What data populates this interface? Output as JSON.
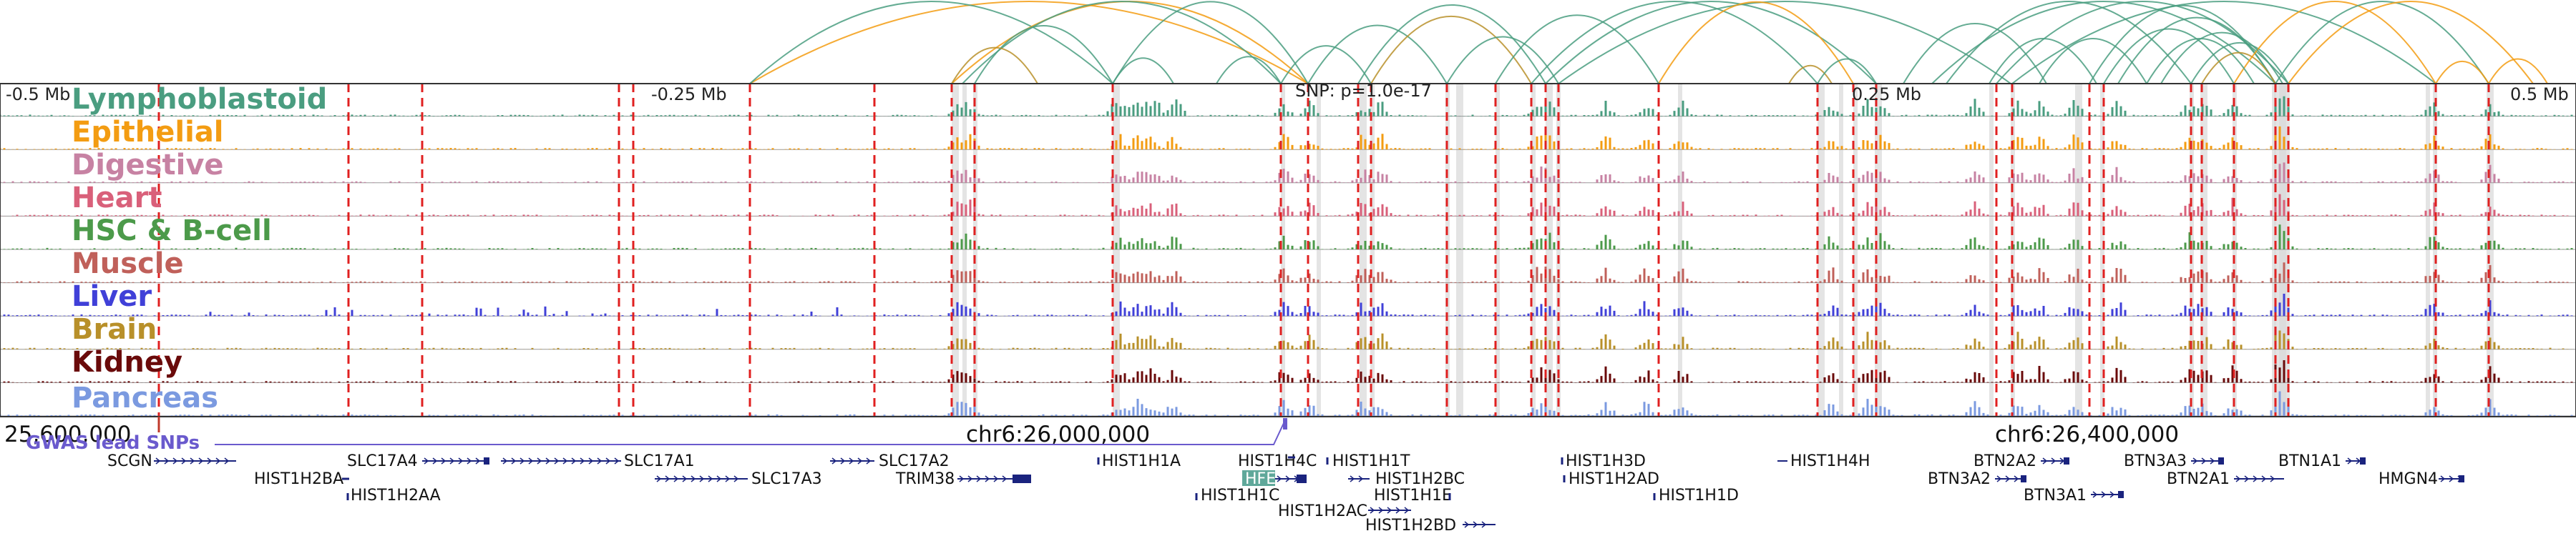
{
  "header": {
    "left_label": "-0.5 Mb",
    "mid_left_label": "-0.25 Mb",
    "snp_label": "SNP: p=1.0e-17",
    "mid_right_label": "0.25 Mb",
    "right_label": "0.5 Mb"
  },
  "coordinates": {
    "c1": "25,600,000",
    "c2": "chr6:26,000,000",
    "c3": "chr6:26,400,000"
  },
  "gwas_label": "GWAS lead SNPs",
  "tracks": [
    {
      "name": "Lymphoblastoid",
      "color": "#4a9d80"
    },
    {
      "name": "Epithelial",
      "color": "#f39c12"
    },
    {
      "name": "Digestive",
      "color": "#c782a3"
    },
    {
      "name": "Heart",
      "color": "#d9607a"
    },
    {
      "name": "HSC & B-cell",
      "color": "#4c9a4a"
    },
    {
      "name": "Muscle",
      "color": "#c0605a"
    },
    {
      "name": "Liver",
      "color": "#4040d8"
    },
    {
      "name": "Brain",
      "color": "#b8902a"
    },
    {
      "name": "Kidney",
      "color": "#6a0a0a"
    },
    {
      "name": "Pancreas",
      "color": "#7b9ae0"
    }
  ],
  "genes": [
    {
      "name": "SCGN"
    },
    {
      "name": "HIST1H2BA"
    },
    {
      "name": "HIST1H2AA"
    },
    {
      "name": "SLC17A4"
    },
    {
      "name": "SLC17A1"
    },
    {
      "name": "SLC17A3"
    },
    {
      "name": "SLC17A2"
    },
    {
      "name": "TRIM38"
    },
    {
      "name": "HIST1H1A"
    },
    {
      "name": "HIST1H4C"
    },
    {
      "name": "HFE"
    },
    {
      "name": "HIST1H1C"
    },
    {
      "name": "HIST1H2AC"
    },
    {
      "name": "HIST1H1T"
    },
    {
      "name": "HIST1H2BC"
    },
    {
      "name": "HIST1H1E"
    },
    {
      "name": "HIST1H2BD"
    },
    {
      "name": "HIST1H3D"
    },
    {
      "name": "HIST1H2AD"
    },
    {
      "name": "HIST1H1D"
    },
    {
      "name": "HIST1H4H"
    },
    {
      "name": "BTN2A2"
    },
    {
      "name": "BTN3A2"
    },
    {
      "name": "BTN3A1"
    },
    {
      "name": "BTN3A3"
    },
    {
      "name": "BTN2A1"
    },
    {
      "name": "BTN1A1"
    },
    {
      "name": "HMGN4"
    }
  ]
}
